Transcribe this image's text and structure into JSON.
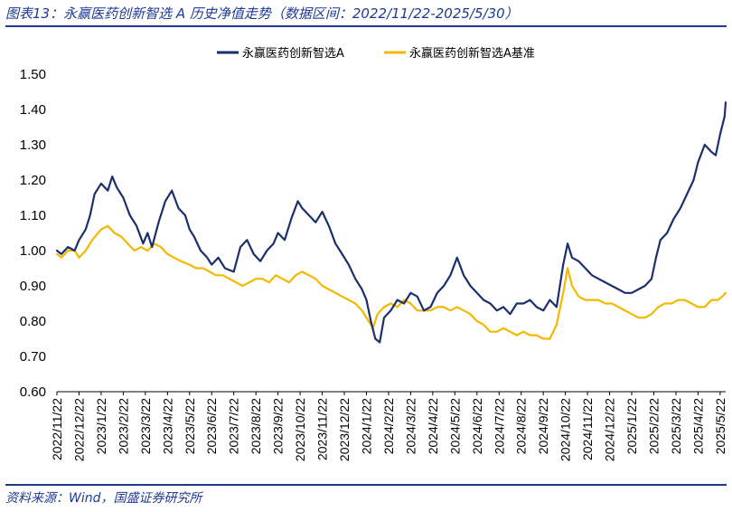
{
  "header": {
    "title": "图表13：永赢医药创新智选 A 历史净值走势（数据区间：2022/11/22-2025/5/30）"
  },
  "footer": {
    "source": "资料来源：Wind，国盛证券研究所"
  },
  "colors": {
    "fund": "#1b2f6e",
    "benchmark": "#f5b800",
    "rule": "#1f3a93"
  },
  "chart_data": {
    "type": "line",
    "title": "",
    "xlabel": "",
    "ylabel": "",
    "ylim": [
      0.6,
      1.5
    ],
    "yticks": [
      "0.60",
      "0.70",
      "0.80",
      "0.90",
      "1.00",
      "1.10",
      "1.20",
      "1.30",
      "1.40",
      "1.50"
    ],
    "grid": false,
    "legend_position": "top-center",
    "categories": [
      "2022/11/22",
      "2022/12/22",
      "2023/1/22",
      "2023/2/22",
      "2023/3/22",
      "2023/4/22",
      "2023/5/22",
      "2023/6/22",
      "2023/7/22",
      "2023/8/22",
      "2023/9/22",
      "2023/10/22",
      "2023/11/22",
      "2023/12/22",
      "2024/1/22",
      "2024/2/22",
      "2024/3/22",
      "2024/4/22",
      "2024/5/22",
      "2024/6/22",
      "2024/7/22",
      "2024/8/22",
      "2024/9/22",
      "2024/10/22",
      "2024/11/22",
      "2024/12/22",
      "2025/1/22",
      "2025/2/22",
      "2025/3/22",
      "2025/4/22",
      "2025/5/22"
    ],
    "x_end": 30.25,
    "series": [
      {
        "name": "永赢医药创新智选A",
        "color": "#1b2f6e",
        "points": [
          [
            0,
            1.0
          ],
          [
            0.2,
            0.99
          ],
          [
            0.5,
            1.01
          ],
          [
            0.8,
            1.0
          ],
          [
            1.0,
            1.03
          ],
          [
            1.3,
            1.06
          ],
          [
            1.5,
            1.1
          ],
          [
            1.7,
            1.16
          ],
          [
            2.0,
            1.19
          ],
          [
            2.3,
            1.17
          ],
          [
            2.5,
            1.21
          ],
          [
            2.7,
            1.18
          ],
          [
            3.0,
            1.15
          ],
          [
            3.3,
            1.1
          ],
          [
            3.6,
            1.07
          ],
          [
            3.9,
            1.02
          ],
          [
            4.1,
            1.05
          ],
          [
            4.3,
            1.01
          ],
          [
            4.6,
            1.08
          ],
          [
            4.9,
            1.14
          ],
          [
            5.2,
            1.17
          ],
          [
            5.5,
            1.12
          ],
          [
            5.8,
            1.1
          ],
          [
            6.0,
            1.06
          ],
          [
            6.2,
            1.04
          ],
          [
            6.5,
            1.0
          ],
          [
            6.8,
            0.98
          ],
          [
            7.0,
            0.96
          ],
          [
            7.3,
            0.98
          ],
          [
            7.6,
            0.95
          ],
          [
            8.0,
            0.94
          ],
          [
            8.3,
            1.01
          ],
          [
            8.6,
            1.03
          ],
          [
            8.9,
            0.99
          ],
          [
            9.2,
            0.97
          ],
          [
            9.5,
            1.0
          ],
          [
            9.8,
            1.02
          ],
          [
            10.0,
            1.05
          ],
          [
            10.3,
            1.03
          ],
          [
            10.6,
            1.09
          ],
          [
            10.9,
            1.14
          ],
          [
            11.1,
            1.12
          ],
          [
            11.4,
            1.1
          ],
          [
            11.7,
            1.08
          ],
          [
            12.0,
            1.11
          ],
          [
            12.3,
            1.07
          ],
          [
            12.6,
            1.02
          ],
          [
            12.9,
            0.99
          ],
          [
            13.2,
            0.96
          ],
          [
            13.5,
            0.92
          ],
          [
            13.8,
            0.89
          ],
          [
            14.0,
            0.86
          ],
          [
            14.2,
            0.8
          ],
          [
            14.4,
            0.75
          ],
          [
            14.6,
            0.74
          ],
          [
            14.8,
            0.81
          ],
          [
            15.1,
            0.83
          ],
          [
            15.4,
            0.86
          ],
          [
            15.7,
            0.85
          ],
          [
            16.0,
            0.88
          ],
          [
            16.3,
            0.87
          ],
          [
            16.6,
            0.83
          ],
          [
            16.9,
            0.84
          ],
          [
            17.2,
            0.88
          ],
          [
            17.5,
            0.9
          ],
          [
            17.8,
            0.93
          ],
          [
            18.1,
            0.98
          ],
          [
            18.4,
            0.93
          ],
          [
            18.7,
            0.9
          ],
          [
            19.0,
            0.88
          ],
          [
            19.3,
            0.86
          ],
          [
            19.6,
            0.85
          ],
          [
            19.9,
            0.83
          ],
          [
            20.2,
            0.84
          ],
          [
            20.5,
            0.82
          ],
          [
            20.8,
            0.85
          ],
          [
            21.1,
            0.85
          ],
          [
            21.4,
            0.86
          ],
          [
            21.7,
            0.84
          ],
          [
            22.0,
            0.83
          ],
          [
            22.3,
            0.86
          ],
          [
            22.6,
            0.84
          ],
          [
            22.9,
            0.96
          ],
          [
            23.1,
            1.02
          ],
          [
            23.3,
            0.98
          ],
          [
            23.6,
            0.97
          ],
          [
            23.9,
            0.95
          ],
          [
            24.2,
            0.93
          ],
          [
            24.5,
            0.92
          ],
          [
            24.8,
            0.91
          ],
          [
            25.1,
            0.9
          ],
          [
            25.4,
            0.89
          ],
          [
            25.7,
            0.88
          ],
          [
            26.0,
            0.88
          ],
          [
            26.3,
            0.89
          ],
          [
            26.6,
            0.9
          ],
          [
            26.9,
            0.92
          ],
          [
            27.1,
            0.98
          ],
          [
            27.3,
            1.03
          ],
          [
            27.6,
            1.05
          ],
          [
            27.9,
            1.09
          ],
          [
            28.2,
            1.12
          ],
          [
            28.5,
            1.16
          ],
          [
            28.8,
            1.2
          ],
          [
            29.0,
            1.25
          ],
          [
            29.3,
            1.3
          ],
          [
            29.6,
            1.28
          ],
          [
            29.8,
            1.27
          ],
          [
            30.0,
            1.33
          ],
          [
            30.2,
            1.38
          ],
          [
            30.25,
            1.42
          ]
        ]
      },
      {
        "name": "永赢医药创新智选A基准",
        "color": "#f5b800",
        "points": [
          [
            0,
            0.99
          ],
          [
            0.2,
            0.98
          ],
          [
            0.5,
            1.0
          ],
          [
            0.8,
            1.0
          ],
          [
            1.0,
            0.98
          ],
          [
            1.3,
            1.0
          ],
          [
            1.6,
            1.03
          ],
          [
            2.0,
            1.06
          ],
          [
            2.3,
            1.07
          ],
          [
            2.6,
            1.05
          ],
          [
            2.9,
            1.04
          ],
          [
            3.2,
            1.02
          ],
          [
            3.5,
            1.0
          ],
          [
            3.8,
            1.01
          ],
          [
            4.1,
            1.0
          ],
          [
            4.4,
            1.02
          ],
          [
            4.7,
            1.01
          ],
          [
            5.0,
            0.99
          ],
          [
            5.3,
            0.98
          ],
          [
            5.6,
            0.97
          ],
          [
            6.0,
            0.96
          ],
          [
            6.3,
            0.95
          ],
          [
            6.6,
            0.95
          ],
          [
            6.9,
            0.94
          ],
          [
            7.2,
            0.93
          ],
          [
            7.5,
            0.93
          ],
          [
            7.8,
            0.92
          ],
          [
            8.1,
            0.91
          ],
          [
            8.4,
            0.9
          ],
          [
            8.7,
            0.91
          ],
          [
            9.0,
            0.92
          ],
          [
            9.3,
            0.92
          ],
          [
            9.6,
            0.91
          ],
          [
            9.9,
            0.93
          ],
          [
            10.2,
            0.92
          ],
          [
            10.5,
            0.91
          ],
          [
            10.8,
            0.93
          ],
          [
            11.1,
            0.94
          ],
          [
            11.4,
            0.93
          ],
          [
            11.7,
            0.92
          ],
          [
            12.0,
            0.9
          ],
          [
            12.3,
            0.89
          ],
          [
            12.6,
            0.88
          ],
          [
            12.9,
            0.87
          ],
          [
            13.2,
            0.86
          ],
          [
            13.5,
            0.85
          ],
          [
            13.8,
            0.83
          ],
          [
            14.1,
            0.8
          ],
          [
            14.3,
            0.78
          ],
          [
            14.5,
            0.82
          ],
          [
            14.8,
            0.84
          ],
          [
            15.1,
            0.85
          ],
          [
            15.4,
            0.84
          ],
          [
            15.7,
            0.86
          ],
          [
            16.0,
            0.85
          ],
          [
            16.3,
            0.83
          ],
          [
            16.6,
            0.83
          ],
          [
            16.9,
            0.83
          ],
          [
            17.2,
            0.84
          ],
          [
            17.5,
            0.84
          ],
          [
            17.8,
            0.83
          ],
          [
            18.1,
            0.84
          ],
          [
            18.4,
            0.83
          ],
          [
            18.7,
            0.82
          ],
          [
            19.0,
            0.8
          ],
          [
            19.3,
            0.79
          ],
          [
            19.6,
            0.77
          ],
          [
            19.9,
            0.77
          ],
          [
            20.2,
            0.78
          ],
          [
            20.5,
            0.77
          ],
          [
            20.8,
            0.76
          ],
          [
            21.1,
            0.77
          ],
          [
            21.4,
            0.76
          ],
          [
            21.7,
            0.76
          ],
          [
            22.0,
            0.75
          ],
          [
            22.3,
            0.75
          ],
          [
            22.6,
            0.79
          ],
          [
            22.9,
            0.88
          ],
          [
            23.1,
            0.95
          ],
          [
            23.3,
            0.9
          ],
          [
            23.6,
            0.87
          ],
          [
            23.9,
            0.86
          ],
          [
            24.2,
            0.86
          ],
          [
            24.5,
            0.86
          ],
          [
            24.8,
            0.85
          ],
          [
            25.1,
            0.85
          ],
          [
            25.4,
            0.84
          ],
          [
            25.7,
            0.83
          ],
          [
            26.0,
            0.82
          ],
          [
            26.3,
            0.81
          ],
          [
            26.6,
            0.81
          ],
          [
            26.9,
            0.82
          ],
          [
            27.2,
            0.84
          ],
          [
            27.5,
            0.85
          ],
          [
            27.8,
            0.85
          ],
          [
            28.1,
            0.86
          ],
          [
            28.4,
            0.86
          ],
          [
            28.7,
            0.85
          ],
          [
            29.0,
            0.84
          ],
          [
            29.3,
            0.84
          ],
          [
            29.6,
            0.86
          ],
          [
            29.9,
            0.86
          ],
          [
            30.1,
            0.87
          ],
          [
            30.25,
            0.88
          ]
        ]
      }
    ]
  }
}
